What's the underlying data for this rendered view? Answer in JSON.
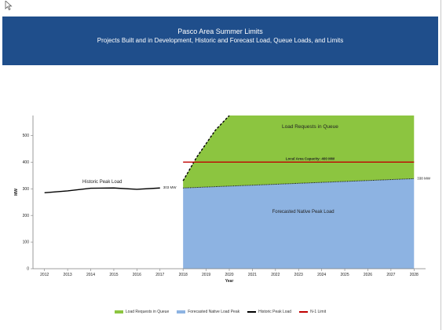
{
  "header": {
    "title": "Pasco Area Summer Limits",
    "subtitle": "Projects Built and in Development, Historic and Forecast Load, Queue Loads, and Limits"
  },
  "colors": {
    "banner": "#1f4e8b",
    "queue_fill": "#8cc540",
    "forecast_fill": "#8db3e2",
    "historic_line": "#000000",
    "limit_line": "#c00000"
  },
  "chart_data": {
    "type": "area",
    "title": "",
    "xlabel": "Year",
    "ylabel": "MW",
    "x_ticks": [
      "2012",
      "2013",
      "2014",
      "2015",
      "2016",
      "2017",
      "2018",
      "2019",
      "2020",
      "2021",
      "2022",
      "2023",
      "2024",
      "2025",
      "2026",
      "2027",
      "2028"
    ],
    "y_ticks": [
      "0",
      "100",
      "200",
      "300",
      "400",
      "500"
    ],
    "xlim": [
      2011.5,
      2028.5
    ],
    "ylim": [
      0,
      575
    ],
    "grid": false,
    "legend_position": "bottom",
    "series": [
      {
        "name": "Historic Peak Load",
        "type": "line",
        "x": [
          2012,
          2013,
          2014,
          2015,
          2016,
          2017
        ],
        "y": [
          285,
          292,
          302,
          303,
          298,
          303
        ]
      },
      {
        "name": "Forecasted Native Load Peak",
        "type": "area",
        "x": [
          2018,
          2028
        ],
        "y": [
          303,
          338
        ]
      },
      {
        "name": "Load Requests in Queue",
        "type": "area",
        "x": [
          2018,
          2018.6,
          2019.4,
          2020,
          2028
        ],
        "y": [
          330,
          420,
          520,
          575,
          575
        ]
      },
      {
        "name": "N-1 Limit",
        "type": "line",
        "x": [
          2018,
          2028
        ],
        "y": [
          400,
          400
        ]
      }
    ],
    "annotations": {
      "historic": "Historic Peak Load",
      "queue": "Load Requests in Queue",
      "limit": "Local Area Capacity: 400 MW",
      "forecast": "Forecasted Native Peak Load",
      "start_value": "303 MW",
      "end_value": "338 MW"
    },
    "legend": [
      "Load Requests in Queue",
      "Forecasted Native Load Peak",
      "Historic Peak Load",
      "N-1 Limit"
    ]
  }
}
